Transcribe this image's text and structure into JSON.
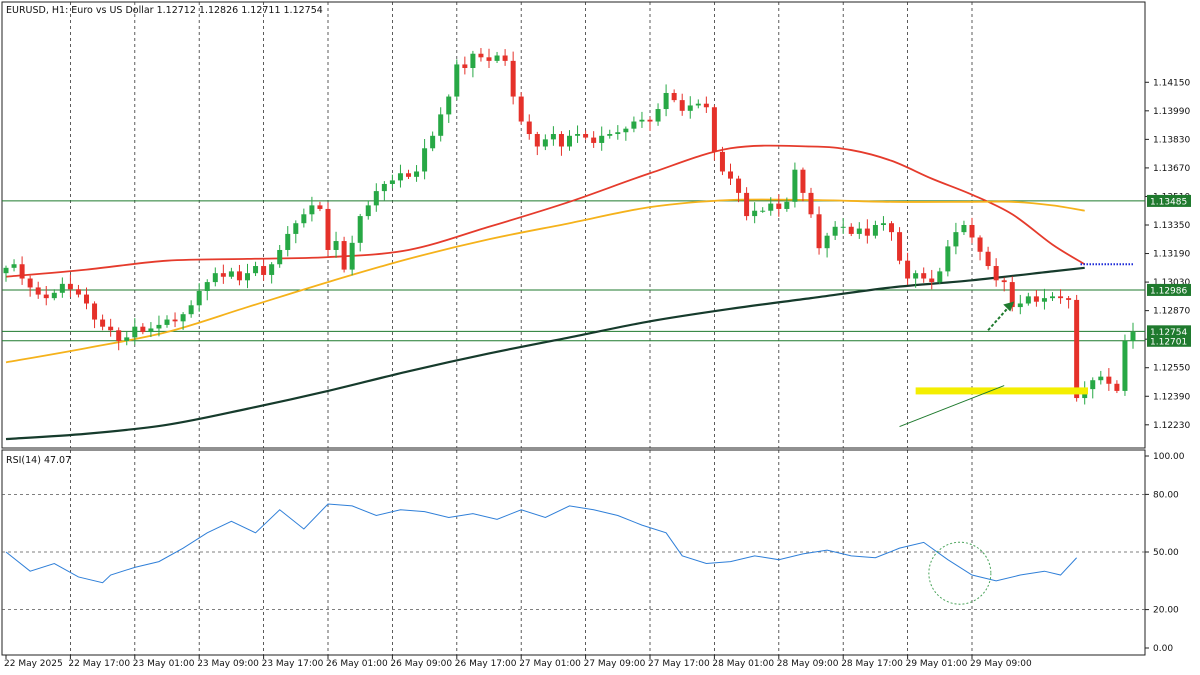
{
  "chart_data": {
    "type": "candlestick",
    "symbol": "EURUSD",
    "timeframe": "H1",
    "title": "EURUSD, H1:  Euro vs US Dollar  1.12712 1.12826 1.12711 1.12754",
    "description": "Euro vs US Dollar",
    "ohlc_last": {
      "open": "1.12712",
      "high": "1.12826",
      "low": "1.12711",
      "close": "1.12754"
    },
    "price_axis": {
      "ylim": [
        1.121,
        1.146
      ],
      "ticks": [
        "1.14150",
        "1.13990",
        "1.13830",
        "1.13670",
        "1.13510",
        "1.13350",
        "1.13190",
        "1.13030",
        "1.12870",
        "1.12710",
        "1.12550",
        "1.12390",
        "1.12230"
      ]
    },
    "time_axis": {
      "labels": [
        "22 May 2025",
        "22 May 17:00",
        "23 May 01:00",
        "23 May 09:00",
        "23 May 17:00",
        "26 May 01:00",
        "26 May 09:00",
        "26 May 17:00",
        "27 May 01:00",
        "27 May 09:00",
        "27 May 17:00",
        "28 May 01:00",
        "28 May 09:00",
        "28 May 17:00",
        "29 May 01:00",
        "29 May 09:00"
      ],
      "bars_per_label": 8,
      "total_slots": 134
    },
    "level_tags": [
      {
        "label": "1.13485",
        "value": 1.13485
      },
      {
        "label": "1.12986",
        "value": 1.12986
      },
      {
        "label": "1.12754",
        "value": 1.12754
      },
      {
        "label": "1.12701",
        "value": 1.12701
      }
    ],
    "closes": [
      1.1311,
      1.1313,
      1.1305,
      1.13,
      1.1296,
      1.1294,
      1.1297,
      1.1302,
      1.1299,
      1.1296,
      1.1291,
      1.1282,
      1.1278,
      1.1276,
      1.127,
      1.1272,
      1.1278,
      1.1275,
      1.1277,
      1.1279,
      1.1282,
      1.1281,
      1.1285,
      1.129,
      1.1298,
      1.1303,
      1.1308,
      1.1306,
      1.1309,
      1.1304,
      1.1308,
      1.1312,
      1.1307,
      1.1313,
      1.1321,
      1.133,
      1.1336,
      1.1341,
      1.1346,
      1.1344,
      1.1321,
      1.1326,
      1.131,
      1.1325,
      1.134,
      1.1346,
      1.1354,
      1.1358,
      1.136,
      1.1364,
      1.1362,
      1.1365,
      1.1378,
      1.1385,
      1.1397,
      1.1407,
      1.1425,
      1.1423,
      1.1431,
      1.1429,
      1.1427,
      1.143,
      1.1427,
      1.1407,
      1.1393,
      1.1386,
      1.1379,
      1.1383,
      1.1386,
      1.1379,
      1.1385,
      1.1386,
      1.1384,
      1.1381,
      1.1385,
      1.1386,
      1.1387,
      1.1389,
      1.1393,
      1.1394,
      1.1393,
      1.14,
      1.1409,
      1.1405,
      1.1399,
      1.1402,
      1.1403,
      1.1401,
      1.1376,
      1.1365,
      1.1361,
      1.1353,
      1.134,
      1.1343,
      1.1343,
      1.1347,
      1.1344,
      1.1348,
      1.1366,
      1.1353,
      1.1341,
      1.1322,
      1.1329,
      1.1334,
      1.1334,
      1.133,
      1.1333,
      1.1329,
      1.1335,
      1.1336,
      1.1331,
      1.1315,
      1.1305,
      1.1308,
      1.1305,
      1.1303,
      1.1309,
      1.1323,
      1.1331,
      1.1335,
      1.1328,
      1.132,
      1.1312,
      1.1304,
      1.1303,
      1.1289,
      1.1291,
      1.1295,
      1.1292,
      1.1294,
      1.1295,
      1.1294,
      1.1293,
      1.1238,
      1.1243,
      1.1248,
      1.125,
      1.1246,
      1.1242,
      1.127,
      1.1275
    ],
    "indicators": [
      {
        "name": "MA fast",
        "color": "#e53b2c",
        "values": [
          [
            0,
            1.1306
          ],
          [
            10,
            1.131
          ],
          [
            20,
            1.1315
          ],
          [
            30,
            1.1316
          ],
          [
            40,
            1.1317
          ],
          [
            50,
            1.1321
          ],
          [
            60,
            1.1334
          ],
          [
            70,
            1.1348
          ],
          [
            80,
            1.1364
          ],
          [
            90,
            1.1378
          ],
          [
            100,
            1.1379
          ],
          [
            105,
            1.1377
          ],
          [
            110,
            1.1371
          ],
          [
            115,
            1.1361
          ],
          [
            120,
            1.1352
          ],
          [
            125,
            1.1341
          ],
          [
            130,
            1.1324
          ],
          [
            134,
            1.1313
          ]
        ]
      },
      {
        "name": "MA medium",
        "color": "#f5b21b",
        "values": [
          [
            0,
            1.1258
          ],
          [
            10,
            1.1266
          ],
          [
            20,
            1.1275
          ],
          [
            30,
            1.1289
          ],
          [
            40,
            1.1303
          ],
          [
            50,
            1.1316
          ],
          [
            60,
            1.1327
          ],
          [
            70,
            1.1336
          ],
          [
            80,
            1.1345
          ],
          [
            90,
            1.1349
          ],
          [
            100,
            1.1349
          ],
          [
            110,
            1.1348
          ],
          [
            120,
            1.1348
          ],
          [
            125,
            1.1348
          ],
          [
            130,
            1.1346
          ],
          [
            134,
            1.1343
          ]
        ]
      },
      {
        "name": "MA slow",
        "color": "#163b2c",
        "values": [
          [
            0,
            1.1215
          ],
          [
            10,
            1.1218
          ],
          [
            20,
            1.1223
          ],
          [
            30,
            1.1232
          ],
          [
            40,
            1.1242
          ],
          [
            50,
            1.1253
          ],
          [
            60,
            1.1263
          ],
          [
            70,
            1.1272
          ],
          [
            80,
            1.1281
          ],
          [
            90,
            1.1288
          ],
          [
            100,
            1.1294
          ],
          [
            110,
            1.13
          ],
          [
            120,
            1.1304
          ],
          [
            130,
            1.1309
          ],
          [
            134,
            1.1311
          ]
        ]
      }
    ],
    "rsi": {
      "label": "RSI(14) 47.07",
      "period": 14,
      "value": 47.07,
      "ylim": [
        0,
        100
      ],
      "ticks": [
        "100.00",
        "80.00",
        "50.00",
        "20.00",
        "0.00"
      ],
      "levels": [
        80,
        50,
        20
      ],
      "color": "#2f7fd8",
      "values": [
        [
          0,
          50
        ],
        [
          3,
          40
        ],
        [
          6,
          44
        ],
        [
          9,
          37
        ],
        [
          12,
          34
        ],
        [
          13,
          38
        ],
        [
          16,
          42
        ],
        [
          19,
          45
        ],
        [
          22,
          52
        ],
        [
          25,
          60
        ],
        [
          28,
          66
        ],
        [
          31,
          60
        ],
        [
          34,
          72
        ],
        [
          37,
          62
        ],
        [
          40,
          75
        ],
        [
          43,
          74
        ],
        [
          46,
          69
        ],
        [
          49,
          72
        ],
        [
          52,
          71
        ],
        [
          55,
          68
        ],
        [
          58,
          70
        ],
        [
          61,
          67
        ],
        [
          64,
          72
        ],
        [
          67,
          68
        ],
        [
          70,
          74
        ],
        [
          73,
          72
        ],
        [
          76,
          69
        ],
        [
          79,
          64
        ],
        [
          82,
          60
        ],
        [
          84,
          48
        ],
        [
          87,
          44
        ],
        [
          90,
          45
        ],
        [
          93,
          48
        ],
        [
          96,
          46
        ],
        [
          99,
          49
        ],
        [
          102,
          51
        ],
        [
          105,
          48
        ],
        [
          108,
          47
        ],
        [
          111,
          52
        ],
        [
          114,
          55
        ],
        [
          117,
          46
        ],
        [
          120,
          38
        ],
        [
          123,
          35
        ],
        [
          126,
          38
        ],
        [
          129,
          40
        ],
        [
          131,
          38
        ],
        [
          133,
          47
        ]
      ]
    },
    "annotations": {
      "dotted_level": 1.1313,
      "support_zone": 1.1242,
      "trendline": [
        [
          111,
          1.1222
        ],
        [
          124,
          1.1245
        ]
      ],
      "arrow": [
        [
          122,
          1.1276
        ],
        [
          125,
          1.1291
        ]
      ],
      "rsi_circle": [
        117,
        40
      ]
    }
  }
}
